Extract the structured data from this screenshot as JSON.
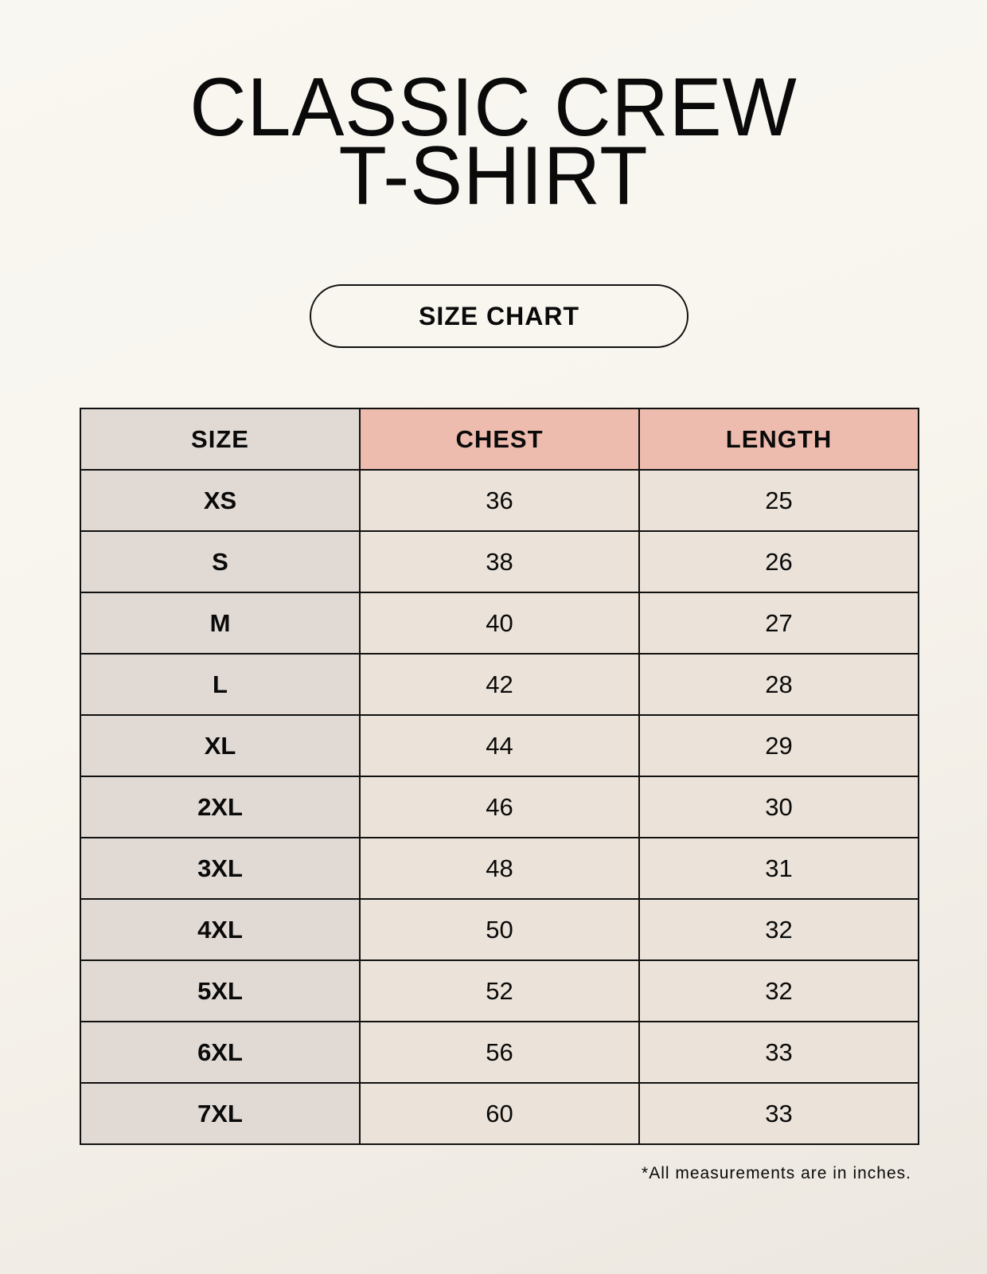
{
  "title": {
    "line1": "CLASSIC CREW",
    "line2": "T-SHIRT"
  },
  "badge": "SIZE CHART",
  "table": {
    "headers": [
      "SIZE",
      "CHEST",
      "LENGTH"
    ],
    "rows": [
      [
        "XS",
        "36",
        "25"
      ],
      [
        "S",
        "38",
        "26"
      ],
      [
        "M",
        "40",
        "27"
      ],
      [
        "L",
        "42",
        "28"
      ],
      [
        "XL",
        "44",
        "29"
      ],
      [
        "2XL",
        "46",
        "30"
      ],
      [
        "3XL",
        "48",
        "31"
      ],
      [
        "4XL",
        "50",
        "32"
      ],
      [
        "5XL",
        "52",
        "32"
      ],
      [
        "6XL",
        "56",
        "33"
      ],
      [
        "7XL",
        "60",
        "33"
      ]
    ]
  },
  "footnote": "*All measurements are in inches.",
  "colors": {
    "header_accent": "#edbcaf",
    "size_column": "#e0d9d4",
    "value_cells": "#ebe3d9"
  }
}
